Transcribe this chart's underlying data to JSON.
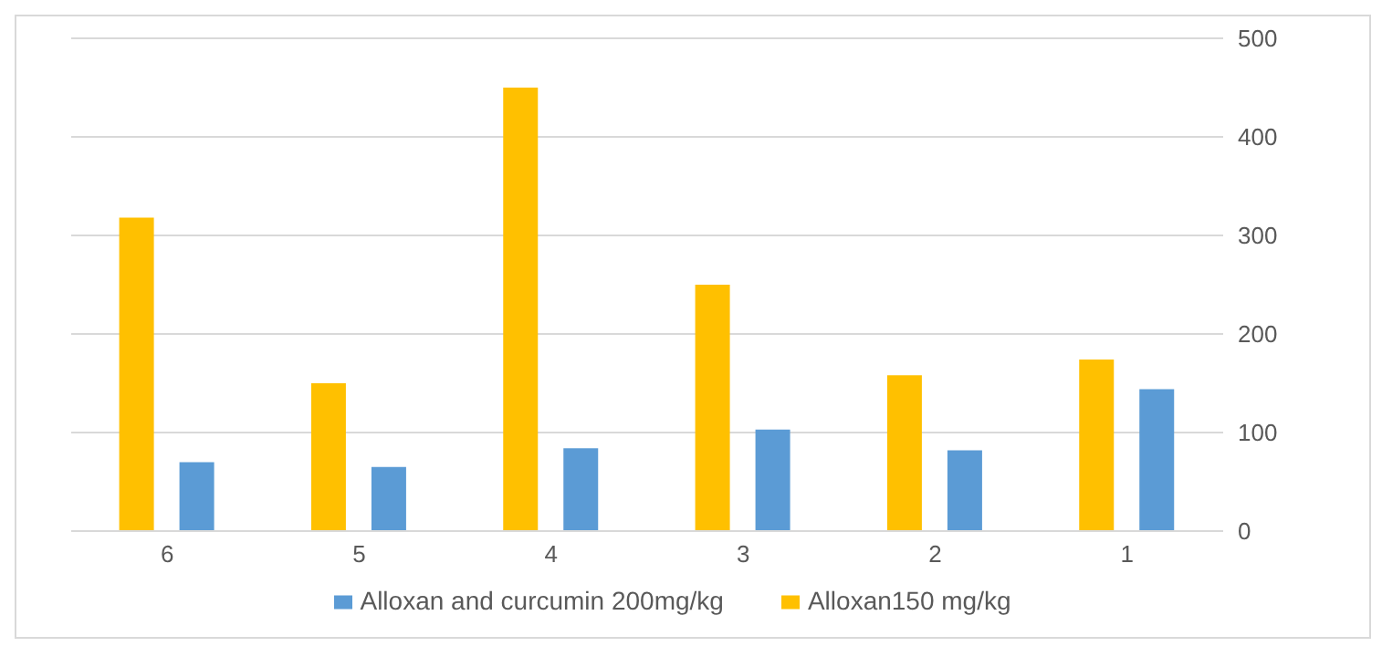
{
  "chart_data": {
    "type": "bar",
    "categories": [
      "6",
      "5",
      "4",
      "3",
      "2",
      "1"
    ],
    "series": [
      {
        "name": "Alloxan150 mg/kg",
        "color": "#ffc000",
        "values": [
          318,
          150,
          450,
          250,
          158,
          174
        ]
      },
      {
        "name": "Alloxan and curcumin 200mg/kg",
        "color": "#5b9bd5",
        "values": [
          70,
          65,
          84,
          103,
          82,
          144
        ]
      }
    ],
    "ylim": [
      0,
      500
    ],
    "yticks": [
      0,
      100,
      200,
      300,
      400,
      500
    ],
    "grid": "y",
    "legend": "bottom"
  }
}
